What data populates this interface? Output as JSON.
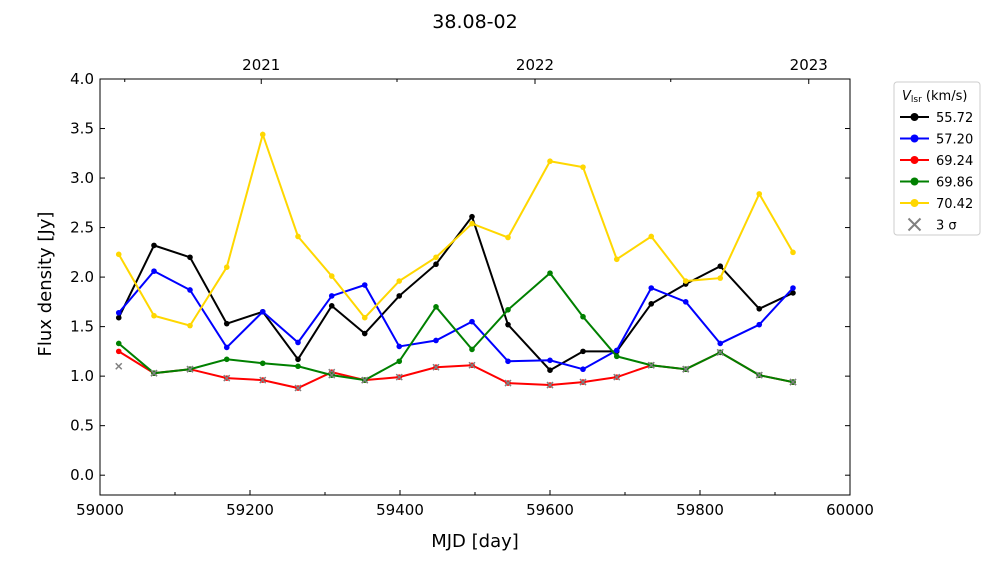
{
  "chart_data": {
    "type": "line",
    "title": "38.08-02",
    "xlabel": "MJD [day]",
    "ylabel": "Flux density [Jy]",
    "xlim": [
      59000,
      60000
    ],
    "ylim": [
      -0.2,
      4.0
    ],
    "xticks": [
      59000,
      59200,
      59400,
      59600,
      59800,
      60000
    ],
    "yticks": [
      0.0,
      0.5,
      1.0,
      1.5,
      2.0,
      2.5,
      3.0,
      3.5,
      4.0
    ],
    "top_axis": {
      "labels": [
        "2021",
        "2022",
        "2023"
      ],
      "mjd": [
        59215,
        59580,
        59945
      ],
      "minor_mjd": [
        59033,
        59396,
        59761
      ]
    },
    "legend": {
      "title_main": "V",
      "title_sub": "lsr",
      "title_unit": " (km/s)",
      "placement": "outside-right",
      "limit_label": "3 σ"
    },
    "x": [
      59025,
      59072,
      59120,
      59169,
      59217,
      59264,
      59309,
      59353,
      59399,
      59448,
      59496,
      59544,
      59600,
      59644,
      59689,
      59735,
      59781,
      59827,
      59879,
      59924
    ],
    "series": [
      {
        "name": "55.72",
        "color": "#000000",
        "values": [
          1.59,
          2.32,
          2.2,
          1.53,
          1.65,
          1.17,
          1.71,
          1.43,
          1.81,
          2.13,
          2.61,
          1.52,
          1.06,
          1.25,
          1.25,
          1.73,
          1.93,
          2.11,
          1.68,
          1.84
        ],
        "limits": []
      },
      {
        "name": "57.20",
        "color": "#0000ff",
        "values": [
          1.64,
          2.06,
          1.87,
          1.29,
          1.65,
          1.34,
          1.81,
          1.92,
          1.3,
          1.36,
          1.55,
          1.15,
          1.16,
          1.07,
          1.26,
          1.89,
          1.75,
          1.33,
          1.52,
          1.89
        ],
        "limits": []
      },
      {
        "name": "69.24",
        "color": "#ff0000",
        "values": [
          1.25,
          1.03,
          1.07,
          0.98,
          0.96,
          0.88,
          1.04,
          0.96,
          0.99,
          1.09,
          1.11,
          0.93,
          0.91,
          0.94,
          0.99,
          1.11,
          1.07,
          1.24,
          1.01,
          0.94
        ],
        "limits": [
          1,
          2,
          3,
          4,
          5,
          6,
          7,
          8,
          9,
          10,
          11,
          12,
          13,
          14,
          15,
          16,
          17,
          18,
          19
        ]
      },
      {
        "name": "69.86",
        "color": "#008000",
        "values": [
          1.33,
          1.03,
          1.07,
          1.17,
          1.13,
          1.1,
          1.01,
          0.96,
          1.15,
          1.7,
          1.27,
          1.67,
          2.04,
          1.6,
          1.2,
          1.11,
          1.07,
          1.24,
          1.01,
          0.94
        ],
        "limits": [
          1,
          2,
          6,
          7,
          15,
          16,
          17,
          18,
          19
        ]
      },
      {
        "name": "70.42",
        "color": "#ffd700",
        "values": [
          2.23,
          1.61,
          1.51,
          2.1,
          3.44,
          2.41,
          2.01,
          1.59,
          1.96,
          2.2,
          2.54,
          2.4,
          3.17,
          3.11,
          2.18,
          2.41,
          1.96,
          1.99,
          2.84,
          2.25
        ],
        "limits": []
      }
    ],
    "sigma_points": [
      {
        "x": 59025,
        "y": 1.1
      }
    ],
    "limit_color": "#808080"
  }
}
